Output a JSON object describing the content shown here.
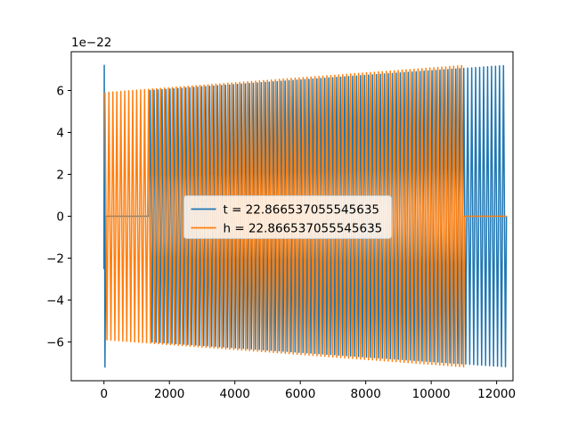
{
  "chart_data": {
    "type": "line",
    "title": "",
    "xlabel": "",
    "ylabel": "",
    "offset_text": "1e−22",
    "xlim": [
      -1000,
      12500
    ],
    "ylim": [
      -7.85e-22,
      7.85e-22
    ],
    "x_ticks": [
      0,
      2000,
      4000,
      6000,
      8000,
      10000,
      12000
    ],
    "x_tick_labels": [
      "0",
      "2000",
      "4000",
      "6000",
      "8000",
      "10000",
      "12000"
    ],
    "y_ticks": [
      -6,
      -4,
      -2,
      0,
      2,
      4,
      6
    ],
    "y_tick_labels": [
      "−6",
      "−4",
      "−2",
      "0",
      "2",
      "4",
      "6"
    ],
    "grid": false,
    "legend": {
      "position": "center"
    },
    "series": [
      {
        "name": "t = 22.866537055545635",
        "color": "#1f77b4",
        "segments": [
          {
            "x_start": 0,
            "x_end": 60,
            "kind": "burst",
            "amp_start": 7.2e-22,
            "amp_end": 7.2e-22
          },
          {
            "x_start": 60,
            "x_end": 1380,
            "kind": "flat",
            "value": 0
          },
          {
            "x_start": 1380,
            "x_end": 12300,
            "kind": "oscillation",
            "cycles": 90,
            "amp_start": 6e-22,
            "amp_end": 7.2e-22
          }
        ]
      },
      {
        "name": "h = 22.866537055545635",
        "color": "#ff7f0e",
        "segments": [
          {
            "x_start": 0,
            "x_end": 11020,
            "kind": "oscillation",
            "cycles": 91,
            "amp_start": 5.9e-22,
            "amp_end": 7.2e-22
          },
          {
            "x_start": 11020,
            "x_end": 12300,
            "kind": "flat",
            "value": 0
          }
        ]
      }
    ]
  }
}
